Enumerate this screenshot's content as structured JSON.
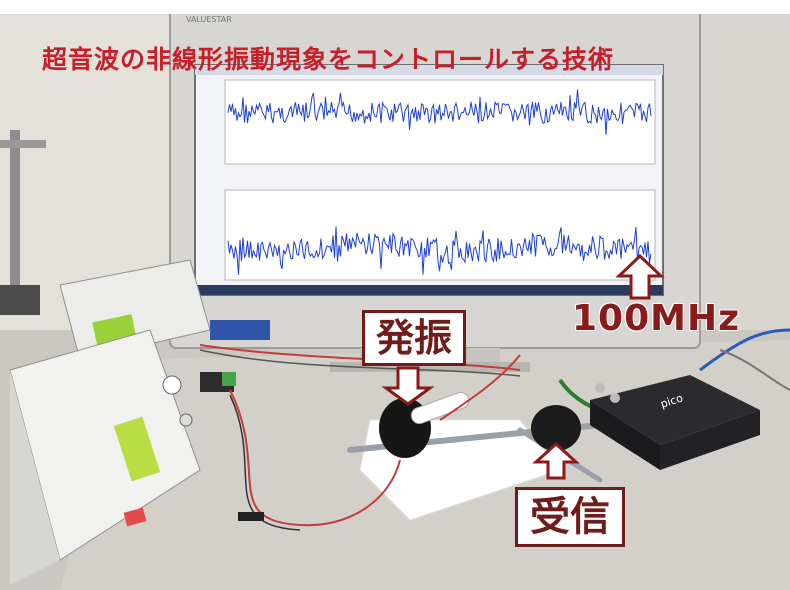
{
  "caption_top": "",
  "title_overlay": "超音波の非線形振動現象をコントロールする技術",
  "monitor_brand": "VALUESTAR",
  "device_brand": "pico",
  "labels": {
    "oscillation": "発振",
    "reception": "受信",
    "frequency": "100MHz"
  },
  "colors": {
    "title": "#c81e2a",
    "label_border": "#6e1c1c",
    "waveform": "#1d3fd6"
  }
}
